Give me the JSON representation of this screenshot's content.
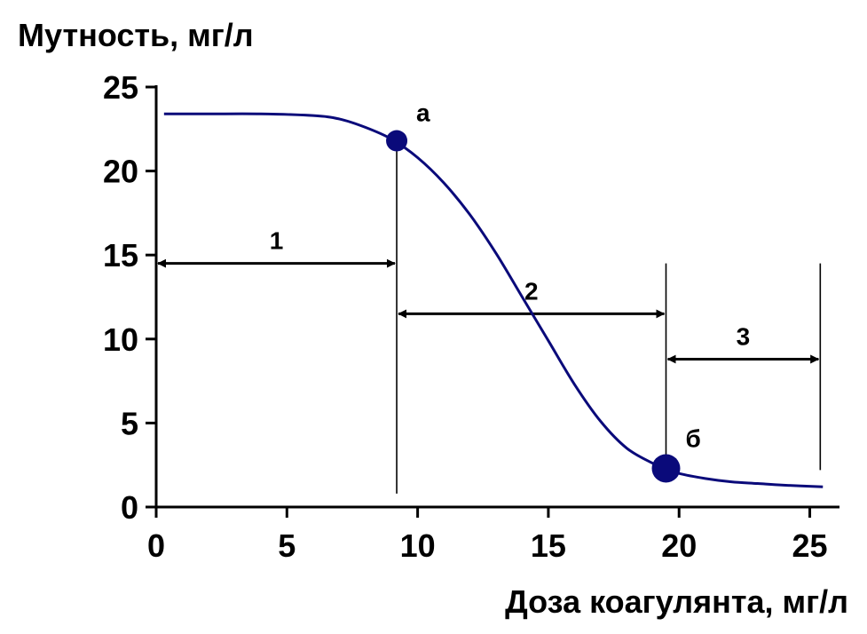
{
  "chart_data": {
    "type": "line",
    "title": "",
    "ylabel": "Мутность, мг/л",
    "xlabel": "Доза коагулянта, мг/л",
    "xlim": [
      0,
      26
    ],
    "ylim": [
      0,
      25
    ],
    "x_ticks": [
      0,
      5,
      10,
      15,
      20,
      25
    ],
    "y_ticks": [
      0,
      5,
      10,
      15,
      20,
      25
    ],
    "x_tick_labels": [
      "0",
      "5",
      "10",
      "15",
      "20",
      "25"
    ],
    "y_tick_labels": [
      "0",
      "5",
      "10",
      "15",
      "20",
      "25"
    ],
    "grid": false,
    "line_color": "#0a0a7a",
    "series": [
      {
        "x": [
          0.3,
          2,
          4,
          6,
          7,
          8,
          9,
          10,
          11,
          12,
          13,
          14,
          15,
          16,
          17,
          18,
          19,
          19.5,
          20,
          21,
          22,
          23,
          24,
          25.5
        ],
        "y": [
          23.4,
          23.4,
          23.4,
          23.3,
          23.1,
          22.6,
          21.9,
          20.8,
          19.3,
          17.4,
          15.1,
          12.5,
          9.9,
          7.3,
          5.1,
          3.5,
          2.6,
          2.3,
          2.0,
          1.7,
          1.5,
          1.4,
          1.3,
          1.2
        ]
      }
    ],
    "points": [
      {
        "label": "а",
        "x": 9.2,
        "y": 21.8
      },
      {
        "label": "б",
        "x": 19.5,
        "y": 2.3
      }
    ],
    "vertical_lines": [
      {
        "x": 9.2,
        "y_from": 0.8,
        "y_to": 21.8
      },
      {
        "x": 19.5,
        "y_from": 2.3,
        "y_to": 14.5
      },
      {
        "x": 25.4,
        "y_from": 2.2,
        "y_to": 14.5
      }
    ],
    "arrows": [
      {
        "label": "1",
        "x_from": 0,
        "x_to": 9.2,
        "y": 14.5
      },
      {
        "label": "2",
        "x_from": 9.2,
        "x_to": 19.5,
        "y": 11.5
      },
      {
        "label": "3",
        "x_from": 19.5,
        "x_to": 25.4,
        "y": 8.8
      }
    ]
  }
}
